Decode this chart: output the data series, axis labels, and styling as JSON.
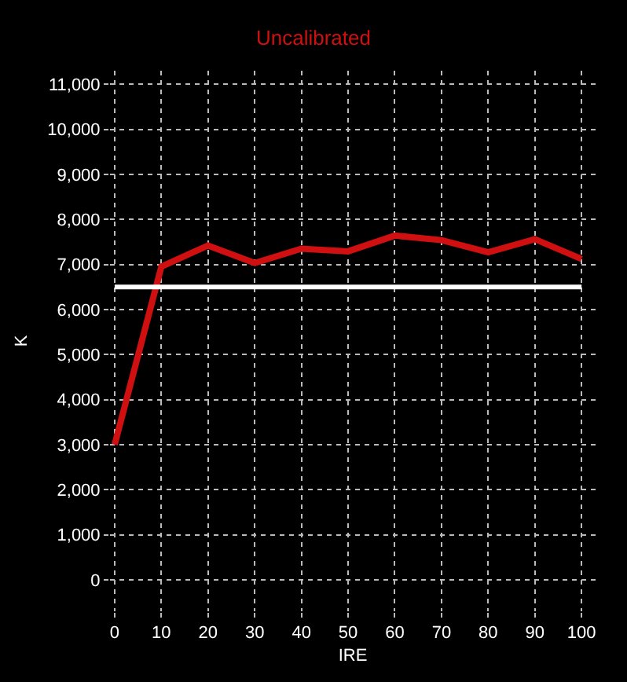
{
  "chart_data": {
    "type": "line",
    "title": "Uncalibrated",
    "xlabel": "IRE",
    "ylabel": "K",
    "x": [
      0,
      10,
      20,
      30,
      40,
      50,
      60,
      70,
      80,
      90,
      100
    ],
    "series": [
      {
        "color": "#d01010",
        "values": [
          3000,
          6950,
          7420,
          7030,
          7350,
          7290,
          7640,
          7540,
          7270,
          7560,
          7120
        ]
      }
    ],
    "ref_lines": [
      {
        "axis": "y",
        "value": 6500,
        "color": "#ffffff"
      }
    ],
    "xlim": [
      -1,
      103
    ],
    "xticks": [
      0,
      10,
      20,
      30,
      40,
      50,
      60,
      70,
      80,
      90,
      100
    ],
    "ylim": [
      -700,
      11300
    ],
    "yticks": [
      {
        "value": 0,
        "label": "0"
      },
      {
        "value": 1000,
        "label": "1,000"
      },
      {
        "value": 2000,
        "label": "2,000"
      },
      {
        "value": 3000,
        "label": "3,000"
      },
      {
        "value": 4000,
        "label": "4,000"
      },
      {
        "value": 5000,
        "label": "5,000"
      },
      {
        "value": 6000,
        "label": "6,000"
      },
      {
        "value": 7000,
        "label": "7,000"
      },
      {
        "value": 8000,
        "label": "8,000"
      },
      {
        "value": 9000,
        "label": "9,000"
      },
      {
        "value": 10000,
        "label": "10,000"
      },
      {
        "value": 11000,
        "label": "11,000"
      }
    ],
    "grid": true,
    "marker": "none",
    "line_style": "solid"
  }
}
